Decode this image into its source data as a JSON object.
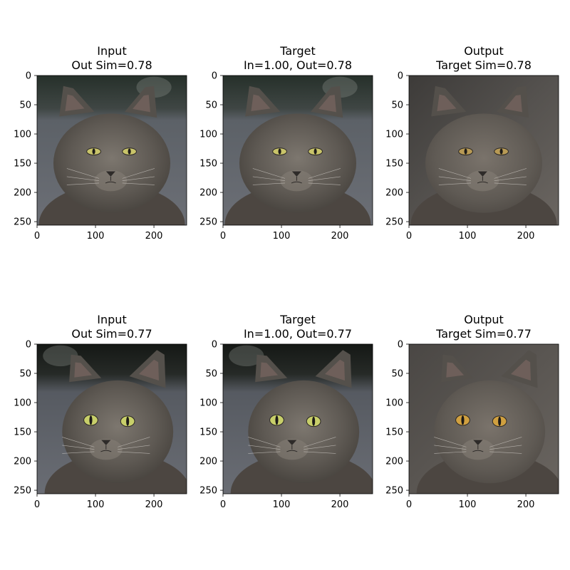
{
  "chart_data": [
    {
      "type": "image",
      "title": [
        "Input",
        "Out Sim=0.78"
      ],
      "subject": "gray-cat-1",
      "variant": "photo",
      "x_ticks": [
        0,
        100,
        200
      ],
      "y_ticks": [
        0,
        50,
        100,
        150,
        200,
        250
      ],
      "xlim": [
        0,
        256
      ],
      "ylim": [
        256,
        0
      ]
    },
    {
      "type": "image",
      "title": [
        "Target",
        "In=1.00, Out=0.78"
      ],
      "subject": "gray-cat-1",
      "variant": "photo",
      "x_ticks": [
        0,
        100,
        200
      ],
      "y_ticks": [
        0,
        50,
        100,
        150,
        200,
        250
      ],
      "xlim": [
        0,
        256
      ],
      "ylim": [
        256,
        0
      ]
    },
    {
      "type": "image",
      "title": [
        "Output",
        "Target Sim=0.78"
      ],
      "subject": "gray-cat-1",
      "variant": "generated",
      "x_ticks": [
        0,
        100,
        200
      ],
      "y_ticks": [
        0,
        50,
        100,
        150,
        200,
        250
      ],
      "xlim": [
        0,
        256
      ],
      "ylim": [
        256,
        0
      ]
    },
    {
      "type": "image",
      "title": [
        "Input",
        "Out Sim=0.77"
      ],
      "subject": "gray-cat-2",
      "variant": "photo",
      "x_ticks": [
        0,
        100,
        200
      ],
      "y_ticks": [
        0,
        50,
        100,
        150,
        200,
        250
      ],
      "xlim": [
        0,
        256
      ],
      "ylim": [
        256,
        0
      ]
    },
    {
      "type": "image",
      "title": [
        "Target",
        "In=1.00, Out=0.77"
      ],
      "subject": "gray-cat-2",
      "variant": "photo",
      "x_ticks": [
        0,
        100,
        200
      ],
      "y_ticks": [
        0,
        50,
        100,
        150,
        200,
        250
      ],
      "xlim": [
        0,
        256
      ],
      "ylim": [
        256,
        0
      ]
    },
    {
      "type": "image",
      "title": [
        "Output",
        "Target Sim=0.77"
      ],
      "subject": "gray-cat-2",
      "variant": "generated",
      "x_ticks": [
        0,
        100,
        200
      ],
      "y_ticks": [
        0,
        50,
        100,
        150,
        200,
        250
      ],
      "xlim": [
        0,
        256
      ],
      "ylim": [
        256,
        0
      ]
    }
  ]
}
